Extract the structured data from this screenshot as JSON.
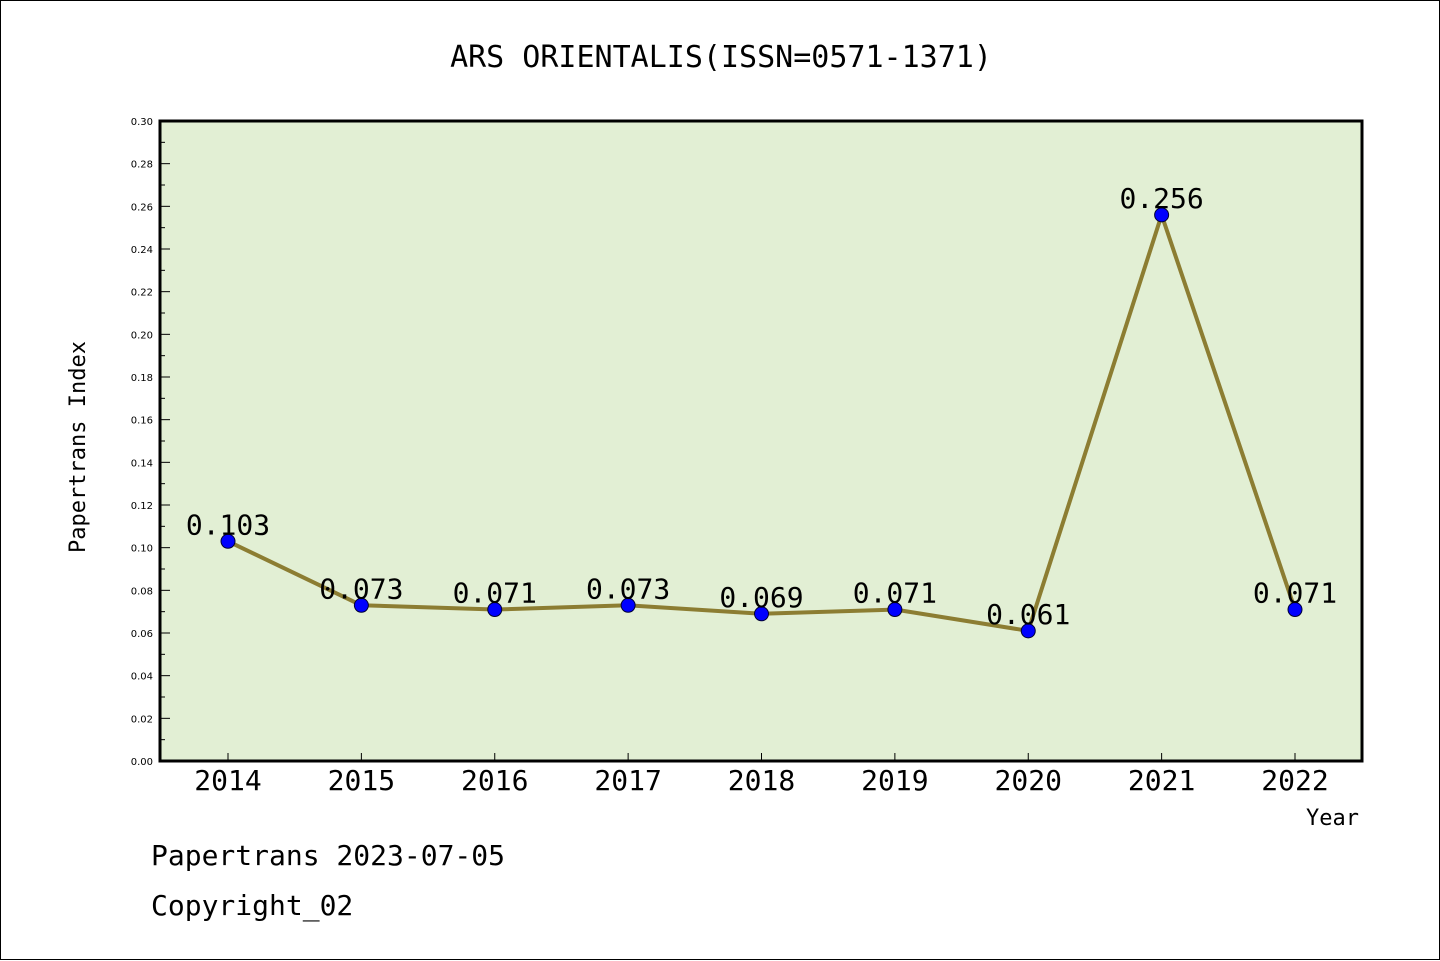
{
  "chart_data": {
    "type": "line",
    "title": "ARS ORIENTALIS(ISSN=0571-1371)",
    "xlabel": "Year",
    "ylabel": "Papertrans Index",
    "categories": [
      "2014",
      "2015",
      "2016",
      "2017",
      "2018",
      "2019",
      "2020",
      "2021",
      "2022"
    ],
    "values": [
      0.103,
      0.073,
      0.071,
      0.073,
      0.069,
      0.071,
      0.061,
      0.256,
      0.071
    ],
    "value_labels": [
      "0.103",
      "0.073",
      "0.071",
      "0.073",
      "0.069",
      "0.071",
      "0.061",
      "0.256",
      "0.071"
    ],
    "ylim": [
      0,
      0.3
    ],
    "yticks": [
      "0.00",
      "0.02",
      "0.04",
      "0.06",
      "0.08",
      "0.10",
      "0.12",
      "0.14",
      "0.16",
      "0.18",
      "0.20",
      "0.22",
      "0.24",
      "0.26",
      "0.28",
      "0.30"
    ],
    "grid": false,
    "colors": {
      "plot_background": "#e2efd4",
      "line": "#8c7d32",
      "marker": "#0000ff"
    }
  },
  "footer": {
    "date_line": "Papertrans 2023-07-05",
    "copyright": "Copyright_02"
  }
}
